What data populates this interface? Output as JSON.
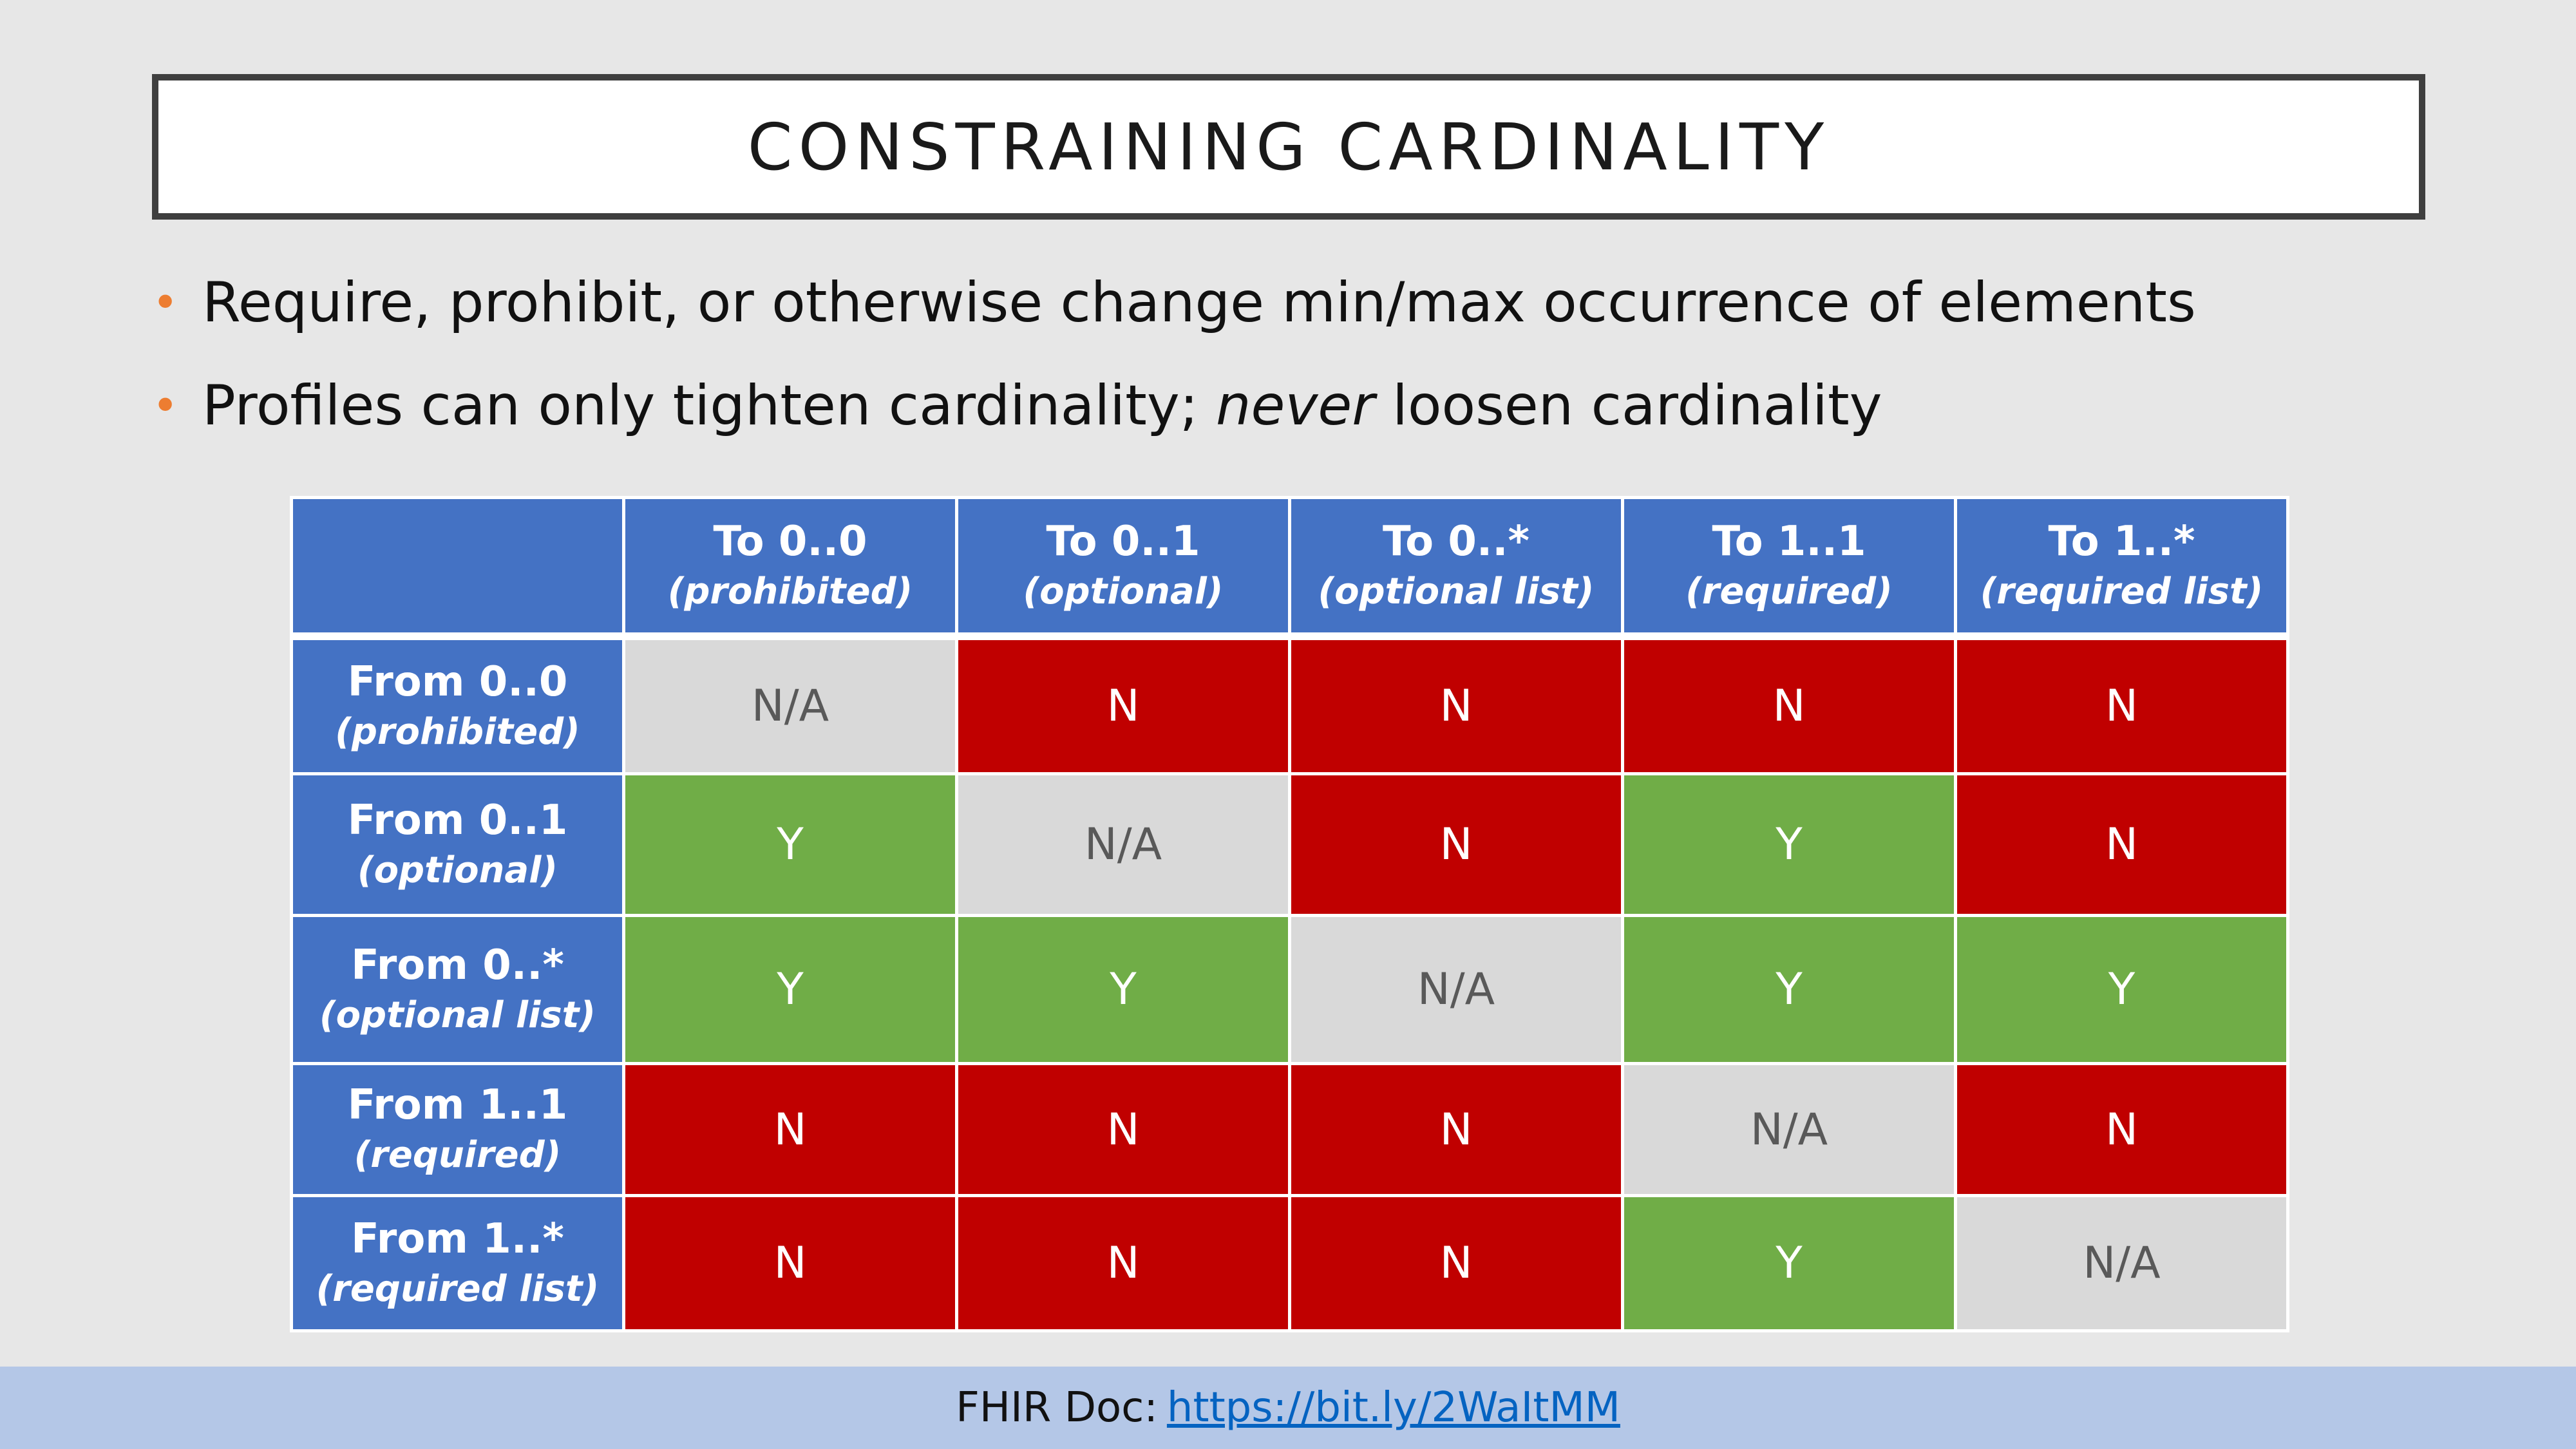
{
  "title": "CONSTRAINING CARDINALITY",
  "bullets": [
    {
      "text": "Require, prohibit, or otherwise change min/max occurrence of elements"
    },
    {
      "before": "Profiles can only tighten cardinality; ",
      "emphasis": "never",
      "after": " loosen cardinality"
    }
  ],
  "table": {
    "columns": [
      {
        "main": "To 0..0",
        "sub": "(prohibited)"
      },
      {
        "main": "To 0..1",
        "sub": "(optional)"
      },
      {
        "main": "To 0..*",
        "sub": "(optional list)"
      },
      {
        "main": "To 1..1",
        "sub": "(required)"
      },
      {
        "main": "To 1..*",
        "sub": "(required list)"
      }
    ],
    "rows": [
      {
        "main": "From 0..0",
        "sub": "(prohibited)",
        "cells": [
          "N/A",
          "N",
          "N",
          "N",
          "N"
        ]
      },
      {
        "main": "From 0..1",
        "sub": "(optional)",
        "cells": [
          "Y",
          "N/A",
          "N",
          "Y",
          "N"
        ]
      },
      {
        "main": "From 0..*",
        "sub": "(optional list)",
        "cells": [
          "Y",
          "Y",
          "N/A",
          "Y",
          "Y"
        ]
      },
      {
        "main": "From 1..1",
        "sub": "(required)",
        "cells": [
          "N",
          "N",
          "N",
          "N/A",
          "N"
        ]
      },
      {
        "main": "From 1..*",
        "sub": "(required list)",
        "cells": [
          "N",
          "N",
          "N",
          "Y",
          "N/A"
        ]
      }
    ]
  },
  "colors": {
    "header_blue": "#4472c4",
    "no_red": "#c00000",
    "yes_green": "#70ad47",
    "na_gray": "#d9d9d9",
    "bullet_orange": "#ed7d31",
    "footer_blue": "#b4c7e7"
  },
  "footer": {
    "label": "FHIR Doc:",
    "link_text": "https://bit.ly/2WaItMM"
  }
}
